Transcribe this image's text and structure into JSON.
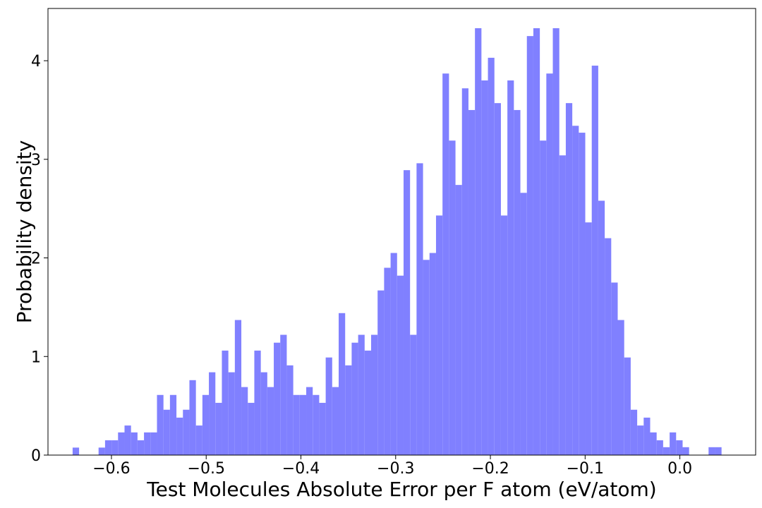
{
  "chart_data": {
    "type": "histogram",
    "x_label": "Test Molecules Absolute Error per F atom (eV/atom)",
    "y_label": "Probability density",
    "color": "#8080ff",
    "bins": [
      -0.641,
      -0.63415,
      -0.6273,
      -0.62045,
      -0.6136,
      -0.60675,
      -0.5999,
      -0.59305,
      -0.5862,
      -0.57935,
      -0.5725,
      -0.56565,
      -0.5588,
      -0.55195,
      -0.5451,
      -0.53825,
      -0.5314,
      -0.52455,
      -0.5177,
      -0.51085,
      -0.504,
      -0.49715,
      -0.4903,
      -0.48345,
      -0.4766,
      -0.46975,
      -0.4629,
      -0.45605,
      -0.4492,
      -0.44235,
      -0.4355,
      -0.42865,
      -0.4218,
      -0.41495,
      -0.4081,
      -0.40125,
      -0.3944,
      -0.38755,
      -0.3807,
      -0.37385,
      -0.367,
      -0.36015,
      -0.3533,
      -0.34645,
      -0.3396,
      -0.33275,
      -0.3259,
      -0.31905,
      -0.3122,
      -0.30535,
      -0.2985,
      -0.29165,
      -0.2848,
      -0.27795,
      -0.2711,
      -0.26425,
      -0.2574,
      -0.25055,
      -0.2437,
      -0.23685,
      -0.23,
      -0.22315,
      -0.2163,
      -0.20945,
      -0.2026,
      -0.19575,
      -0.1889,
      -0.18205,
      -0.1752,
      -0.16835,
      -0.1615,
      -0.15465,
      -0.1478,
      -0.14095,
      -0.1341,
      -0.12725,
      -0.1204,
      -0.11355,
      -0.1067,
      -0.09985,
      -0.093,
      -0.08615,
      -0.0793,
      -0.07245,
      -0.0656,
      -0.05875,
      -0.0519,
      -0.04505,
      -0.0382,
      -0.03135,
      -0.0245,
      -0.01765,
      -0.0108,
      -0.00395,
      0.0029,
      0.00975,
      0.0166,
      0.02345,
      0.0303,
      0.03715,
      0.044
    ],
    "values": [
      0.076,
      0,
      0,
      0,
      0.076,
      0.15,
      0.15,
      0.23,
      0.3,
      0.23,
      0.15,
      0.23,
      0.23,
      0.61,
      0.46,
      0.61,
      0.38,
      0.46,
      0.76,
      0.3,
      0.61,
      0.84,
      0.53,
      1.06,
      0.84,
      1.37,
      0.69,
      0.53,
      1.06,
      0.84,
      0.69,
      1.14,
      1.22,
      0.91,
      0.61,
      0.61,
      0.69,
      0.61,
      0.53,
      0.99,
      0.69,
      1.44,
      0.91,
      1.14,
      1.22,
      1.06,
      1.22,
      1.67,
      1.9,
      2.05,
      1.82,
      2.89,
      1.22,
      2.96,
      1.98,
      2.05,
      2.43,
      3.87,
      3.19,
      2.74,
      3.72,
      3.5,
      4.33,
      3.8,
      4.03,
      3.57,
      2.43,
      3.8,
      3.5,
      2.66,
      4.25,
      4.33,
      3.19,
      3.87,
      4.33,
      3.04,
      3.57,
      3.34,
      3.27,
      2.36,
      3.95,
      2.58,
      2.2,
      1.75,
      1.37,
      0.99,
      0.46,
      0.3,
      0.38,
      0.23,
      0.15,
      0.08,
      0.23,
      0.15,
      0.08,
      0,
      0,
      0,
      0.08,
      0.08
    ],
    "xlim": [
      -0.667,
      0.08
    ],
    "ylim": [
      0,
      4.53
    ],
    "xticks": [
      {
        "value": -0.6,
        "label": "−0.6"
      },
      {
        "value": -0.5,
        "label": "−0.5"
      },
      {
        "value": -0.4,
        "label": "−0.4"
      },
      {
        "value": -0.3,
        "label": "−0.3"
      },
      {
        "value": -0.2,
        "label": "−0.2"
      },
      {
        "value": -0.1,
        "label": "−0.1"
      },
      {
        "value": 0,
        "label": "0.0"
      }
    ],
    "yticks": [
      0,
      1,
      2,
      3,
      4
    ]
  }
}
